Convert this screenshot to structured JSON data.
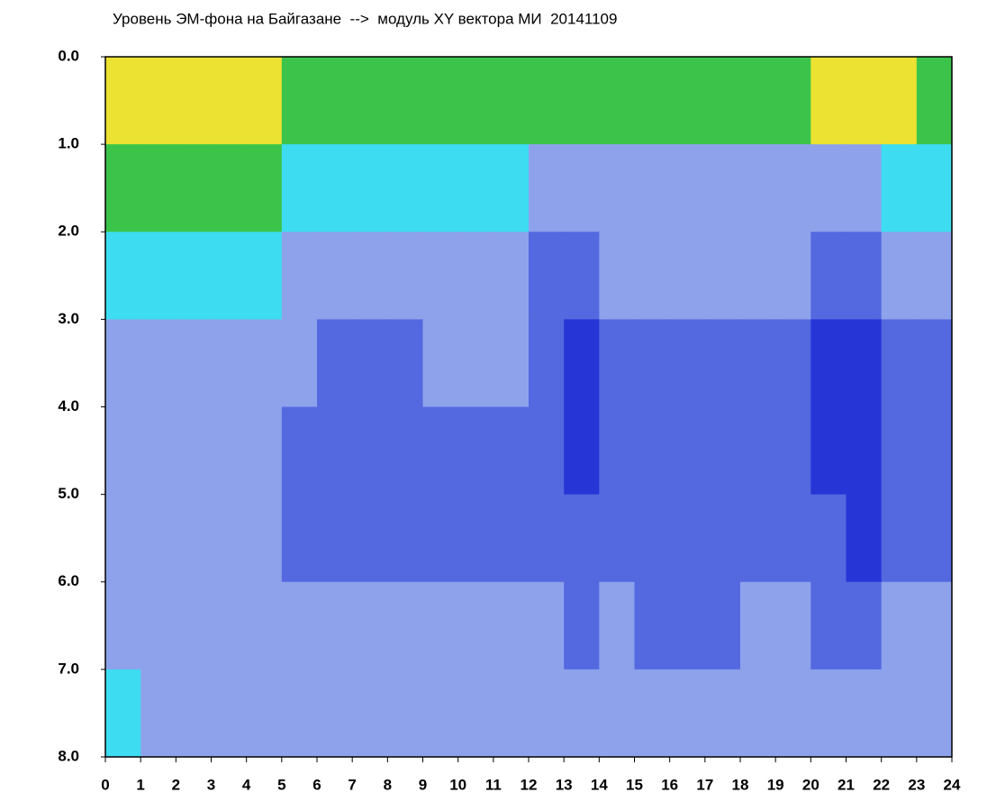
{
  "chart_data": {
    "type": "heatmap",
    "title": "Уровень ЭМ-фона на Байгазане  -->  модуль XY вектора МИ  20141109",
    "xlim": [
      0,
      24
    ],
    "xticks": [
      0,
      1,
      2,
      3,
      4,
      5,
      6,
      7,
      8,
      9,
      10,
      11,
      12,
      13,
      14,
      15,
      16,
      17,
      18,
      19,
      20,
      21,
      22,
      23,
      24
    ],
    "ylim": [
      0,
      8
    ],
    "y_reversed": true,
    "yticks": [
      {
        "value": 0,
        "label": "0.0"
      },
      {
        "value": 1,
        "label": "1.0"
      },
      {
        "value": 2,
        "label": "2.0"
      },
      {
        "value": 3,
        "label": "3.0"
      },
      {
        "value": 4,
        "label": "4.0"
      },
      {
        "value": 5,
        "label": "5.0"
      },
      {
        "value": 6,
        "label": "6.0"
      },
      {
        "value": 7,
        "label": "7.0"
      },
      {
        "value": 8,
        "label": "8.0"
      }
    ],
    "colorscale": [
      "#2636d6",
      "#5468e0",
      "#8ea2ec",
      "#3ddcf0",
      "#3cc44a",
      "#ece232",
      "#f03a22"
    ],
    "values": [
      [
        5,
        5,
        5,
        5,
        5,
        4,
        4,
        4,
        4,
        4,
        4,
        4,
        4,
        4,
        4,
        4,
        4,
        4,
        4,
        4,
        5,
        5,
        5,
        4
      ],
      [
        4,
        4,
        4,
        4,
        4,
        3,
        3,
        3,
        3,
        3,
        3,
        3,
        2,
        2,
        2,
        2,
        2,
        2,
        2,
        2,
        2,
        2,
        3,
        3
      ],
      [
        3,
        3,
        3,
        3,
        3,
        2,
        2,
        2,
        2,
        2,
        2,
        2,
        1,
        1,
        2,
        2,
        2,
        2,
        2,
        2,
        1,
        1,
        2,
        2
      ],
      [
        2,
        2,
        2,
        2,
        2,
        2,
        1,
        1,
        1,
        2,
        2,
        2,
        1,
        0,
        1,
        1,
        1,
        1,
        1,
        1,
        0,
        0,
        1,
        1
      ],
      [
        2,
        2,
        2,
        2,
        2,
        1,
        1,
        1,
        1,
        1,
        1,
        1,
        1,
        0,
        1,
        1,
        1,
        1,
        1,
        1,
        0,
        0,
        1,
        1
      ],
      [
        2,
        2,
        2,
        2,
        2,
        1,
        1,
        1,
        1,
        1,
        1,
        1,
        1,
        1,
        1,
        1,
        1,
        1,
        1,
        1,
        1,
        0,
        1,
        1
      ],
      [
        2,
        2,
        2,
        2,
        2,
        2,
        2,
        2,
        2,
        2,
        2,
        2,
        2,
        1,
        2,
        1,
        1,
        1,
        2,
        2,
        1,
        1,
        2,
        2
      ],
      [
        3,
        2,
        2,
        2,
        2,
        2,
        2,
        2,
        2,
        2,
        2,
        2,
        2,
        2,
        2,
        2,
        2,
        2,
        2,
        2,
        2,
        2,
        2,
        2
      ]
    ]
  }
}
